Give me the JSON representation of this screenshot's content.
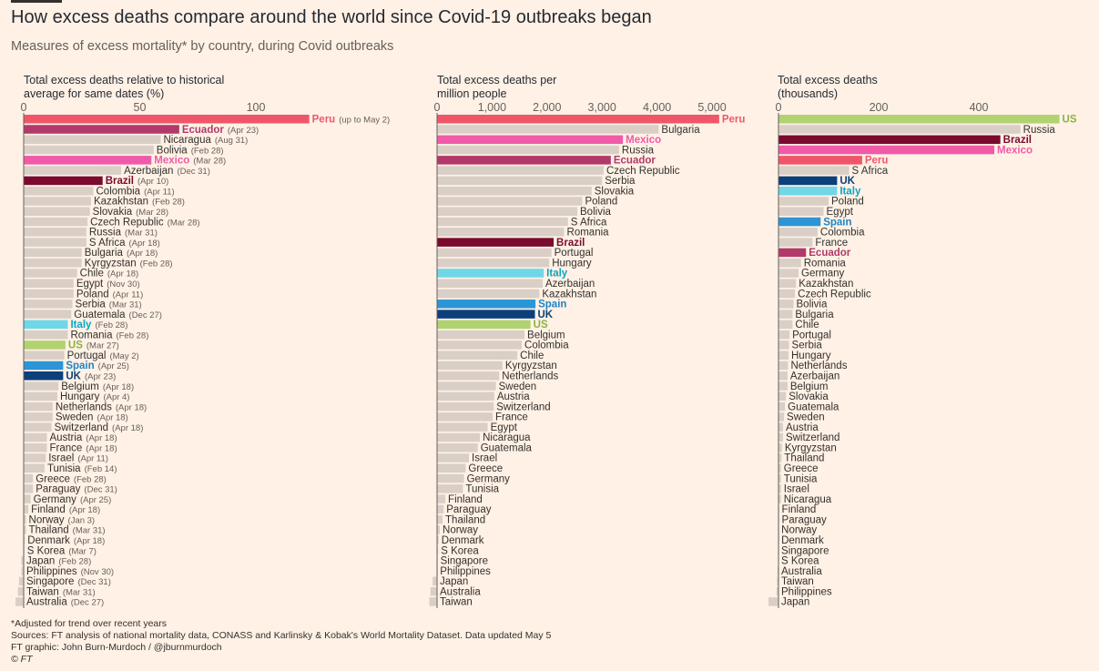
{
  "title": "How excess deaths compare around the world since Covid-19 outbreaks began",
  "subtitle": "Measures of excess mortality* by country, during Covid outbreaks",
  "footer": {
    "note": "*Adjusted for trend over recent years",
    "sources": "Sources: FT analysis of national mortality data, CONASS and Karlinsky & Kobak's World Mortality Dataset. Data updated May 5",
    "graphic": "FT graphic: John Burn-Murdoch / @jburnmurdoch",
    "copyright": "© FT"
  },
  "colors": {
    "background": "#fff1e5",
    "default_bar": "#d9cfc6",
    "Peru": "#f0566a",
    "Ecuador": "#b23a6b",
    "Mexico": "#f05aa8",
    "Brazil": "#7a0a2e",
    "Italy": "#6fd7e7",
    "US": "#b1d270",
    "Spain": "#2b95d6",
    "UK": "#0d3f7a"
  },
  "chart_data": [
    {
      "type": "bar",
      "orientation": "horizontal",
      "title": "Total excess deaths relative to historical average for same dates (%)",
      "xlim": [
        0,
        125
      ],
      "ticks": [
        0,
        50,
        100
      ],
      "rows": [
        {
          "country": "Peru",
          "value": 123,
          "date": "(up to May 2)"
        },
        {
          "country": "Ecuador",
          "value": 67,
          "date": "(Apr 23)"
        },
        {
          "country": "Nicaragua",
          "value": 59,
          "date": "(Aug 31)"
        },
        {
          "country": "Bolivia",
          "value": 56,
          "date": "(Feb 28)"
        },
        {
          "country": "Mexico",
          "value": 55,
          "date": "(Mar 28)"
        },
        {
          "country": "Azerbaijan",
          "value": 42,
          "date": "(Dec 31)"
        },
        {
          "country": "Brazil",
          "value": 34,
          "date": "(Apr 10)"
        },
        {
          "country": "Colombia",
          "value": 30,
          "date": "(Apr 11)"
        },
        {
          "country": "Kazakhstan",
          "value": 29,
          "date": "(Feb 28)"
        },
        {
          "country": "Slovakia",
          "value": 28.5,
          "date": "(Mar 28)"
        },
        {
          "country": "Czech Republic",
          "value": 27.5,
          "date": "(Mar 28)"
        },
        {
          "country": "Russia",
          "value": 27,
          "date": "(Mar 31)"
        },
        {
          "country": "S Africa",
          "value": 27,
          "date": "(Apr 18)"
        },
        {
          "country": "Bulgaria",
          "value": 25,
          "date": "(Apr 18)"
        },
        {
          "country": "Kyrgyzstan",
          "value": 25,
          "date": "(Feb 28)"
        },
        {
          "country": "Chile",
          "value": 23,
          "date": "(Apr 18)"
        },
        {
          "country": "Egypt",
          "value": 21.5,
          "date": "(Nov 30)"
        },
        {
          "country": "Poland",
          "value": 21.5,
          "date": "(Apr 11)"
        },
        {
          "country": "Serbia",
          "value": 21,
          "date": "(Mar 31)"
        },
        {
          "country": "Guatemala",
          "value": 20.5,
          "date": "(Dec 27)"
        },
        {
          "country": "Italy",
          "value": 19,
          "date": "(Feb 28)"
        },
        {
          "country": "Romania",
          "value": 19,
          "date": "(Feb 28)"
        },
        {
          "country": "US",
          "value": 18,
          "date": "(Mar 27)"
        },
        {
          "country": "Portugal",
          "value": 17.5,
          "date": "(May 2)"
        },
        {
          "country": "Spain",
          "value": 17,
          "date": "(Apr 25)"
        },
        {
          "country": "UK",
          "value": 17,
          "date": "(Apr 23)"
        },
        {
          "country": "Belgium",
          "value": 15,
          "date": "(Apr 18)"
        },
        {
          "country": "Hungary",
          "value": 14.5,
          "date": "(Apr 4)"
        },
        {
          "country": "Netherlands",
          "value": 12.5,
          "date": "(Apr 18)"
        },
        {
          "country": "Sweden",
          "value": 12.5,
          "date": "(Apr 18)"
        },
        {
          "country": "Switzerland",
          "value": 12,
          "date": "(Apr 18)"
        },
        {
          "country": "Austria",
          "value": 10,
          "date": "(Apr 18)"
        },
        {
          "country": "France",
          "value": 10,
          "date": "(Apr 18)"
        },
        {
          "country": "Israel",
          "value": 9.5,
          "date": "(Apr 11)"
        },
        {
          "country": "Tunisia",
          "value": 9,
          "date": "(Feb 14)"
        },
        {
          "country": "Greece",
          "value": 4,
          "date": "(Feb 28)"
        },
        {
          "country": "Paraguay",
          "value": 4,
          "date": "(Dec 31)"
        },
        {
          "country": "Germany",
          "value": 3,
          "date": "(Apr 25)"
        },
        {
          "country": "Finland",
          "value": 2,
          "date": "(Apr 18)"
        },
        {
          "country": "Norway",
          "value": 1,
          "date": "(Jan 3)"
        },
        {
          "country": "Thailand",
          "value": 1,
          "date": "(Mar 31)"
        },
        {
          "country": "Denmark",
          "value": 0.5,
          "date": "(Apr 18)"
        },
        {
          "country": "S Korea",
          "value": 0.3,
          "date": "(Mar 7)"
        },
        {
          "country": "Japan",
          "value": -1,
          "date": "(Feb 28)"
        },
        {
          "country": "Philippines",
          "value": -1,
          "date": "(Nov 30)"
        },
        {
          "country": "Singapore",
          "value": -2,
          "date": "(Dec 31)"
        },
        {
          "country": "Taiwan",
          "value": -2.5,
          "date": "(Mar 31)"
        },
        {
          "country": "Australia",
          "value": -3.5,
          "date": "(Dec 27)"
        }
      ]
    },
    {
      "type": "bar",
      "orientation": "horizontal",
      "title": "Total excess deaths per million people",
      "xlim": [
        0,
        5200
      ],
      "ticks": [
        0,
        1000,
        2000,
        3000,
        4000,
        5000
      ],
      "tick_labels": [
        "0",
        "1,000",
        "2,000",
        "3,000",
        "4,000",
        "5,000"
      ],
      "rows": [
        {
          "country": "Peru",
          "value": 5130
        },
        {
          "country": "Bulgaria",
          "value": 4030
        },
        {
          "country": "Mexico",
          "value": 3380
        },
        {
          "country": "Russia",
          "value": 3310
        },
        {
          "country": "Ecuador",
          "value": 3160
        },
        {
          "country": "Czech Republic",
          "value": 3030
        },
        {
          "country": "Serbia",
          "value": 3000
        },
        {
          "country": "Slovakia",
          "value": 2810
        },
        {
          "country": "Poland",
          "value": 2640
        },
        {
          "country": "Bolivia",
          "value": 2550
        },
        {
          "country": "S Africa",
          "value": 2380
        },
        {
          "country": "Romania",
          "value": 2310
        },
        {
          "country": "Brazil",
          "value": 2120
        },
        {
          "country": "Portugal",
          "value": 2080
        },
        {
          "country": "Hungary",
          "value": 2040
        },
        {
          "country": "Italy",
          "value": 1940
        },
        {
          "country": "Azerbaijan",
          "value": 1920
        },
        {
          "country": "Kazakhstan",
          "value": 1860
        },
        {
          "country": "Spain",
          "value": 1790
        },
        {
          "country": "UK",
          "value": 1780
        },
        {
          "country": "US",
          "value": 1700
        },
        {
          "country": "Belgium",
          "value": 1590
        },
        {
          "country": "Colombia",
          "value": 1540
        },
        {
          "country": "Chile",
          "value": 1460
        },
        {
          "country": "Kyrgyzstan",
          "value": 1190
        },
        {
          "country": "Netherlands",
          "value": 1130
        },
        {
          "country": "Sweden",
          "value": 1070
        },
        {
          "country": "Austria",
          "value": 1040
        },
        {
          "country": "Switzerland",
          "value": 1030
        },
        {
          "country": "France",
          "value": 1010
        },
        {
          "country": "Egypt",
          "value": 920
        },
        {
          "country": "Nicaragua",
          "value": 780
        },
        {
          "country": "Guatemala",
          "value": 740
        },
        {
          "country": "Israel",
          "value": 580
        },
        {
          "country": "Greece",
          "value": 520
        },
        {
          "country": "Germany",
          "value": 490
        },
        {
          "country": "Tunisia",
          "value": 470
        },
        {
          "country": "Finland",
          "value": 150
        },
        {
          "country": "Paraguay",
          "value": 120
        },
        {
          "country": "Thailand",
          "value": 100
        },
        {
          "country": "Norway",
          "value": 50
        },
        {
          "country": "Denmark",
          "value": 30
        },
        {
          "country": "S Korea",
          "value": 20
        },
        {
          "country": "Singapore",
          "value": 10
        },
        {
          "country": "Philippines",
          "value": 5
        },
        {
          "country": "Japan",
          "value": -80
        },
        {
          "country": "Australia",
          "value": -120
        },
        {
          "country": "Taiwan",
          "value": -140
        }
      ]
    },
    {
      "type": "bar",
      "orientation": "horizontal",
      "title": "Total excess deaths (thousands)",
      "xlim": [
        0,
        560
      ],
      "ticks": [
        0,
        200,
        400
      ],
      "rows": [
        {
          "country": "US",
          "value": 561
        },
        {
          "country": "Russia",
          "value": 483
        },
        {
          "country": "Brazil",
          "value": 443
        },
        {
          "country": "Mexico",
          "value": 431
        },
        {
          "country": "Peru",
          "value": 167
        },
        {
          "country": "S Africa",
          "value": 141
        },
        {
          "country": "UK",
          "value": 117
        },
        {
          "country": "Italy",
          "value": 117
        },
        {
          "country": "Poland",
          "value": 100
        },
        {
          "country": "Egypt",
          "value": 90
        },
        {
          "country": "Spain",
          "value": 84
        },
        {
          "country": "Colombia",
          "value": 78
        },
        {
          "country": "France",
          "value": 68
        },
        {
          "country": "Ecuador",
          "value": 55
        },
        {
          "country": "Romania",
          "value": 45
        },
        {
          "country": "Germany",
          "value": 40
        },
        {
          "country": "Kazakhstan",
          "value": 35
        },
        {
          "country": "Czech Republic",
          "value": 33
        },
        {
          "country": "Bolivia",
          "value": 30
        },
        {
          "country": "Bulgaria",
          "value": 28
        },
        {
          "country": "Chile",
          "value": 28
        },
        {
          "country": "Portugal",
          "value": 22
        },
        {
          "country": "Serbia",
          "value": 21
        },
        {
          "country": "Hungary",
          "value": 20
        },
        {
          "country": "Netherlands",
          "value": 19
        },
        {
          "country": "Azerbaijan",
          "value": 18
        },
        {
          "country": "Belgium",
          "value": 18
        },
        {
          "country": "Slovakia",
          "value": 15
        },
        {
          "country": "Guatemala",
          "value": 13
        },
        {
          "country": "Sweden",
          "value": 11
        },
        {
          "country": "Austria",
          "value": 9
        },
        {
          "country": "Switzerland",
          "value": 9
        },
        {
          "country": "Kyrgyzstan",
          "value": 7
        },
        {
          "country": "Thailand",
          "value": 6
        },
        {
          "country": "Greece",
          "value": 5
        },
        {
          "country": "Tunisia",
          "value": 5
        },
        {
          "country": "Israel",
          "value": 5
        },
        {
          "country": "Nicaragua",
          "value": 5
        },
        {
          "country": "Finland",
          "value": 1
        },
        {
          "country": "Paraguay",
          "value": 1
        },
        {
          "country": "Norway",
          "value": 0.3
        },
        {
          "country": "Denmark",
          "value": 0.2
        },
        {
          "country": "Singapore",
          "value": 0.1
        },
        {
          "country": "S Korea",
          "value": -0.5
        },
        {
          "country": "Australia",
          "value": -2
        },
        {
          "country": "Taiwan",
          "value": -3
        },
        {
          "country": "Philippines",
          "value": -4
        },
        {
          "country": "Japan",
          "value": -20
        }
      ]
    }
  ]
}
